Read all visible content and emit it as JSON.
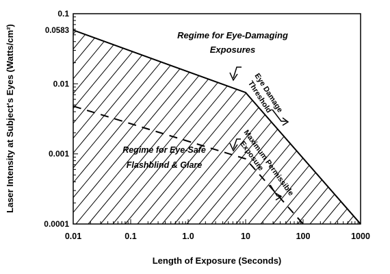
{
  "chart_data": {
    "type": "line",
    "xlabel": "Length of Exposure (Seconds)",
    "ylabel": "Laser Intensity at Subject's Eyes (Watts/cm²)",
    "xscale": "log",
    "yscale": "log",
    "xlim": [
      0.01,
      1000
    ],
    "ylim": [
      0.0001,
      0.1
    ],
    "x_tick_labels": [
      "0.01",
      "0.1",
      "1.0",
      "10",
      "100",
      "1000"
    ],
    "y_tick_labels": [
      "0.1",
      "0.0583",
      "0.01",
      "0.001",
      "0.0001"
    ],
    "series": [
      {
        "name": "Eye Damage Threshold",
        "style": "solid",
        "points": [
          [
            0.01,
            0.0583
          ],
          [
            10,
            0.0075
          ],
          [
            1000,
            0.0001
          ]
        ]
      },
      {
        "name": "Maximum Permissible Exposure",
        "style": "dashed",
        "points": [
          [
            0.01,
            0.0048
          ],
          [
            10,
            0.00085
          ],
          [
            100,
            0.0001
          ]
        ]
      }
    ],
    "annotations": {
      "damaging_regime": [
        "Regime for Eye-Damaging",
        "Exposures"
      ],
      "safe_regime": [
        "Regime for Eye-Safe",
        "Flashblind & Glare"
      ],
      "threshold_label": [
        "Eye Damage",
        "Threshold"
      ],
      "mpe_label": [
        "Maximum Permissible",
        "Exposure"
      ]
    },
    "hatched_region": "below eye damage threshold"
  }
}
